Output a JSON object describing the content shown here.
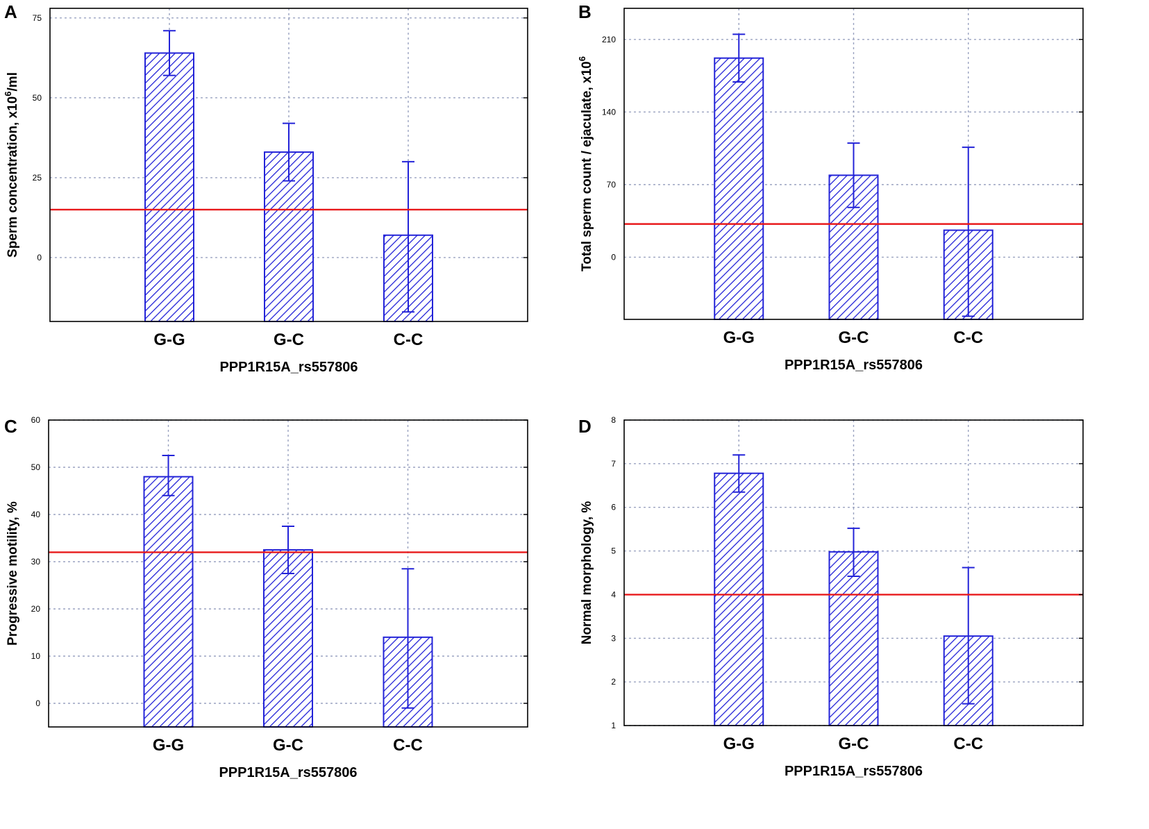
{
  "figure": {
    "colors": {
      "bar": "#2323d8",
      "error": "#2323d8",
      "threshold": "#e8191b",
      "grid": "#9aa2c0",
      "frame": "#000000"
    }
  },
  "chart_data": [
    {
      "panel": "A",
      "type": "bar",
      "title": "",
      "xlabel": "PPP1R15A_rs557806",
      "ylabel": "Sperm concentration, x10",
      "ylabel_sup": "6",
      "ylabel_suffix": "/ml",
      "categories": [
        "G-G",
        "G-C",
        "C-C"
      ],
      "values": [
        64,
        33,
        7
      ],
      "err_low": [
        57,
        24,
        -17
      ],
      "err_high": [
        71,
        42,
        30
      ],
      "threshold": 15,
      "ylim": [
        -20,
        78
      ],
      "yticks": [
        0,
        25,
        50,
        75
      ],
      "ytick_labels": [
        "0",
        "25",
        "50",
        "75"
      ],
      "grid": true
    },
    {
      "panel": "B",
      "type": "bar",
      "title": "",
      "xlabel": "PPP1R15A_rs557806",
      "ylabel": "Total sperm count / ejaculate, x10",
      "ylabel_sup": "6",
      "ylabel_suffix": "",
      "categories": [
        "G-G",
        "G-C",
        "C-C"
      ],
      "values": [
        192,
        79,
        26
      ],
      "err_low": [
        169,
        48,
        -57
      ],
      "err_high": [
        215,
        110,
        106
      ],
      "threshold": 32,
      "ylim": [
        -60,
        240
      ],
      "yticks": [
        0,
        70,
        140,
        210
      ],
      "ytick_labels": [
        "0",
        "70",
        "140",
        "210"
      ],
      "grid": true
    },
    {
      "panel": "C",
      "type": "bar",
      "title": "",
      "xlabel": "PPP1R15A_rs557806",
      "ylabel": "Progressive motility, %",
      "ylabel_sup": "",
      "ylabel_suffix": "",
      "categories": [
        "G-G",
        "G-C",
        "C-C"
      ],
      "values": [
        48,
        32.5,
        14
      ],
      "err_low": [
        44,
        27.5,
        -1
      ],
      "err_high": [
        52.5,
        37.5,
        28.5
      ],
      "threshold": 32,
      "ylim": [
        -5,
        60
      ],
      "yticks": [
        0,
        10,
        20,
        30,
        40,
        50,
        60
      ],
      "ytick_labels": [
        "0",
        "10",
        "20",
        "30",
        "40",
        "50",
        "60"
      ],
      "grid": true
    },
    {
      "panel": "D",
      "type": "bar",
      "title": "",
      "xlabel": "PPP1R15A_rs557806",
      "ylabel": "Normal morphology, %",
      "ylabel_sup": "",
      "ylabel_suffix": "",
      "categories": [
        "G-G",
        "G-C",
        "C-C"
      ],
      "values": [
        6.78,
        4.98,
        3.05
      ],
      "err_low": [
        6.35,
        4.42,
        1.5
      ],
      "err_high": [
        7.2,
        5.52,
        4.62
      ],
      "threshold": 4,
      "ylim": [
        1,
        8
      ],
      "yticks": [
        1,
        2,
        3,
        4,
        5,
        6,
        7,
        8
      ],
      "ytick_labels": [
        "1",
        "2",
        "3",
        "4",
        "5",
        "6",
        "7",
        "8"
      ],
      "grid": true
    }
  ]
}
